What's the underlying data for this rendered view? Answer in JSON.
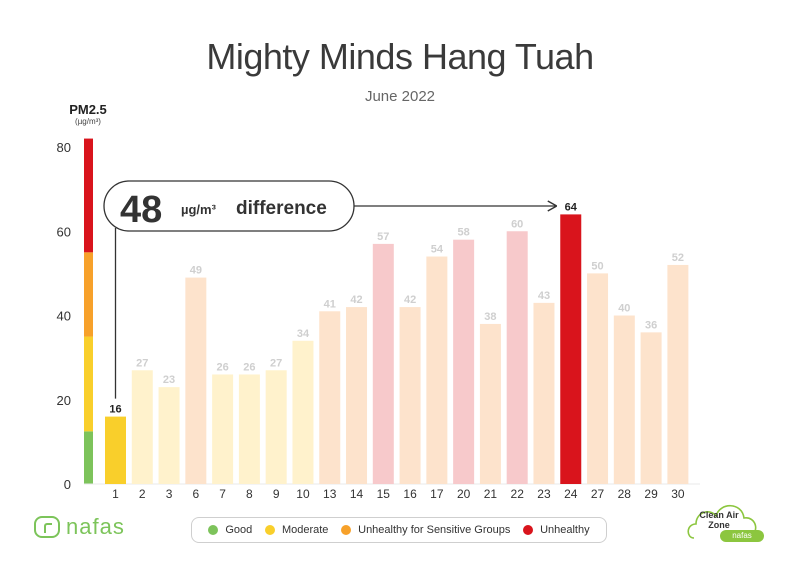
{
  "header": {
    "title": "Mighty Minds Hang Tuah",
    "subtitle": "June 2022"
  },
  "axis": {
    "pm_label": "PM2.5",
    "pm_unit": "(µg/m³)"
  },
  "annotation": {
    "value": "48",
    "unit": "µg/m³",
    "text": "difference"
  },
  "legend": [
    {
      "label": "Good",
      "color": "#7dc35b"
    },
    {
      "label": "Moderate",
      "color": "#f9cf2b"
    },
    {
      "label": "Unhealthy for  Sensitive Groups",
      "color": "#f7a12a"
    },
    {
      "label": "Unhealthy",
      "color": "#d9141c"
    }
  ],
  "logos": {
    "left_text": "nafas",
    "badge_line1": "Clean Air",
    "badge_line2": "Zone",
    "badge_pill": "nafas"
  },
  "chart_data": {
    "type": "bar",
    "ylim": [
      0,
      80
    ],
    "yticks": [
      0,
      20,
      40,
      60,
      80
    ],
    "categories": [
      "1",
      "2",
      "3",
      "6",
      "7",
      "8",
      "9",
      "10",
      "13",
      "14",
      "15",
      "16",
      "17",
      "20",
      "21",
      "22",
      "23",
      "24",
      "27",
      "28",
      "29",
      "30"
    ],
    "values": [
      16,
      27,
      23,
      49,
      26,
      26,
      27,
      34,
      41,
      42,
      57,
      42,
      54,
      58,
      38,
      60,
      43,
      64,
      50,
      40,
      36,
      52
    ],
    "highlight_min_index": 0,
    "highlight_max_index": 17,
    "scale_bands": [
      {
        "from": 0,
        "to": 12.5,
        "color": "#7dc35b"
      },
      {
        "from": 12.5,
        "to": 35,
        "color": "#f9cf2b"
      },
      {
        "from": 35,
        "to": 55,
        "color": "#f7a12a"
      },
      {
        "from": 55,
        "to": 82,
        "color": "#d9141c"
      }
    ],
    "category_colors": {
      "moderate_light": "#fff2cc",
      "usg_light": "#fde3cc",
      "unhealthy_light": "#f7c9cb",
      "moderate_strong": "#f9cf2b",
      "unhealthy_strong": "#d9141c"
    },
    "grid": false
  }
}
